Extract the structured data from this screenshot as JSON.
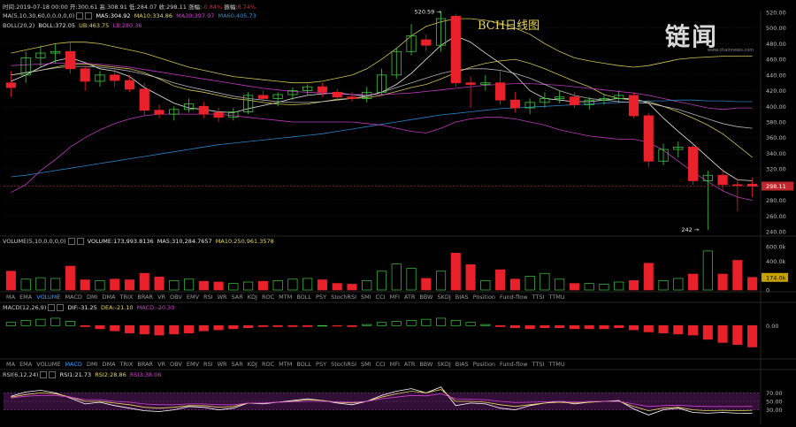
{
  "header": {
    "time_label": "时间:",
    "time": "2019-07-18 00:00",
    "open_label": "开:",
    "open": "300.61",
    "high_label": "高:",
    "high": "308.91",
    "low_label": "低:",
    "low": "284.07",
    "close_label": "收:",
    "close": "298.11",
    "chg_label": "涨幅:",
    "chg": "-0.84%",
    "amp_label": "振幅:",
    "amp": "8.74%"
  },
  "ma_line": {
    "setting": "MA(5,10,30,60,0,0,0,0,0)",
    "ma5": "MA5:304.92",
    "ma10": "MA10:334.86",
    "ma30": "MA30:397.97",
    "ma60": "MA60:405.73"
  },
  "boll_line": {
    "setting": "BOLL(20,2)",
    "boll": "BOLL:372.05",
    "ub": "UB:463.75",
    "lb": "LB:280.36"
  },
  "vol_line": {
    "setting": "VOLUME(5,10,0,0,0,0)",
    "volume": "VOLUME:173,993.8136",
    "ma5": "MA5:310,284.7657",
    "ma10": "MA10:250,961.3578"
  },
  "macd_line": {
    "setting": "MACD(12,26,9)",
    "dif": "DIF:-31.25",
    "dea": "DEA:-21.10",
    "macd": "MACD:-20.30"
  },
  "rsi_line": {
    "setting": "RSI(6,12,24)",
    "rsi1": "RSI1:21.73",
    "rsi2": "RSI2:28.86",
    "rsi3": "RSI3:38.06"
  },
  "indicator_tabs": [
    "MA",
    "EMA",
    "VOLUME",
    "MACD",
    "DMI",
    "DMA",
    "TRIX",
    "BRAR",
    "VR",
    "OBV",
    "EMV",
    "RSI",
    "WR",
    "SAR",
    "KDJ",
    "ROC",
    "MTM",
    "BOLL",
    "PSY",
    "StochRSI",
    "SMI",
    "CCI",
    "MFI",
    "ATR",
    "BBW",
    "SKDJ",
    "BIAS",
    "Position",
    "Fund-flow",
    "TTSI",
    "TTMU"
  ],
  "active_tab_1": "VOLUME",
  "active_tab_2": "MACD",
  "watermark": "链闻",
  "watermark_sub": "www.chainnews.com",
  "colors": {
    "up": "#3ec93e",
    "down": "#e8212a",
    "ma5": "#ffffff",
    "ma10": "#e8d85a",
    "ma30": "#d23fd2",
    "ma60": "#2f8fd8",
    "boll_mid": "#e8d85a",
    "boll_band": "#c8c8c8",
    "bg": "#000000"
  },
  "chart_data": [
    {
      "type": "candlestick",
      "title": "BCH日线图",
      "ylim": [
        240,
        520
      ],
      "yticks": [
        "520.00",
        "500.00",
        "480.00",
        "460.00",
        "440.00",
        "420.00",
        "400.00",
        "380.00",
        "360.00",
        "340.00",
        "320.00",
        "300.00",
        "280.00",
        "260.00",
        "240.00"
      ],
      "annotations": [
        {
          "text": "520.59 →",
          "x_index": 29,
          "value": 520.59
        },
        {
          "text": "242 →",
          "x_index": 47,
          "value": 242
        }
      ],
      "last_price": "298.11",
      "candles": [
        {
          "o": 430,
          "h": 445,
          "l": 412,
          "c": 424
        },
        {
          "o": 440,
          "h": 470,
          "l": 430,
          "c": 462
        },
        {
          "o": 462,
          "h": 478,
          "l": 450,
          "c": 468
        },
        {
          "o": 468,
          "h": 480,
          "l": 455,
          "c": 470
        },
        {
          "o": 470,
          "h": 482,
          "l": 442,
          "c": 448
        },
        {
          "o": 448,
          "h": 452,
          "l": 420,
          "c": 432
        },
        {
          "o": 432,
          "h": 445,
          "l": 425,
          "c": 440
        },
        {
          "o": 440,
          "h": 448,
          "l": 425,
          "c": 433
        },
        {
          "o": 433,
          "h": 440,
          "l": 418,
          "c": 422
        },
        {
          "o": 422,
          "h": 430,
          "l": 388,
          "c": 395
        },
        {
          "o": 395,
          "h": 402,
          "l": 385,
          "c": 390
        },
        {
          "o": 390,
          "h": 400,
          "l": 382,
          "c": 396
        },
        {
          "o": 396,
          "h": 410,
          "l": 392,
          "c": 403
        },
        {
          "o": 400,
          "h": 406,
          "l": 385,
          "c": 390
        },
        {
          "o": 392,
          "h": 398,
          "l": 380,
          "c": 386
        },
        {
          "o": 386,
          "h": 398,
          "l": 382,
          "c": 393
        },
        {
          "o": 393,
          "h": 418,
          "l": 390,
          "c": 414
        },
        {
          "o": 414,
          "h": 420,
          "l": 405,
          "c": 410
        },
        {
          "o": 410,
          "h": 418,
          "l": 400,
          "c": 415
        },
        {
          "o": 415,
          "h": 424,
          "l": 408,
          "c": 420
        },
        {
          "o": 420,
          "h": 428,
          "l": 414,
          "c": 425
        },
        {
          "o": 425,
          "h": 430,
          "l": 412,
          "c": 418
        },
        {
          "o": 418,
          "h": 422,
          "l": 408,
          "c": 412
        },
        {
          "o": 412,
          "h": 418,
          "l": 406,
          "c": 410
        },
        {
          "o": 410,
          "h": 425,
          "l": 405,
          "c": 418
        },
        {
          "o": 418,
          "h": 448,
          "l": 415,
          "c": 440
        },
        {
          "o": 440,
          "h": 475,
          "l": 435,
          "c": 470
        },
        {
          "o": 470,
          "h": 505,
          "l": 465,
          "c": 490
        },
        {
          "o": 485,
          "h": 492,
          "l": 470,
          "c": 478
        },
        {
          "o": 478,
          "h": 521,
          "l": 470,
          "c": 512
        },
        {
          "o": 515,
          "h": 518,
          "l": 425,
          "c": 430
        },
        {
          "o": 430,
          "h": 438,
          "l": 398,
          "c": 428
        },
        {
          "o": 428,
          "h": 440,
          "l": 420,
          "c": 430
        },
        {
          "o": 430,
          "h": 445,
          "l": 402,
          "c": 408
        },
        {
          "o": 408,
          "h": 418,
          "l": 392,
          "c": 398
        },
        {
          "o": 398,
          "h": 410,
          "l": 390,
          "c": 405
        },
        {
          "o": 405,
          "h": 418,
          "l": 398,
          "c": 410
        },
        {
          "o": 410,
          "h": 420,
          "l": 404,
          "c": 412
        },
        {
          "o": 412,
          "h": 418,
          "l": 398,
          "c": 402
        },
        {
          "o": 402,
          "h": 412,
          "l": 396,
          "c": 408
        },
        {
          "o": 408,
          "h": 416,
          "l": 402,
          "c": 410
        },
        {
          "o": 410,
          "h": 420,
          "l": 404,
          "c": 414
        },
        {
          "o": 414,
          "h": 418,
          "l": 385,
          "c": 388
        },
        {
          "o": 388,
          "h": 392,
          "l": 322,
          "c": 330
        },
        {
          "o": 330,
          "h": 352,
          "l": 325,
          "c": 345
        },
        {
          "o": 345,
          "h": 355,
          "l": 335,
          "c": 348
        },
        {
          "o": 348,
          "h": 352,
          "l": 300,
          "c": 305
        },
        {
          "o": 305,
          "h": 318,
          "l": 242,
          "c": 312
        },
        {
          "o": 312,
          "h": 320,
          "l": 292,
          "c": 300
        },
        {
          "o": 300,
          "h": 308,
          "l": 266,
          "c": 299
        },
        {
          "o": 300.61,
          "h": 308.91,
          "l": 284.07,
          "c": 298.11
        }
      ],
      "series": [
        {
          "name": "MA5",
          "values": [
            432,
            440,
            450,
            458,
            462,
            456,
            448,
            445,
            438,
            424,
            414,
            404,
            398,
            396,
            393,
            392,
            397,
            401,
            405,
            410,
            414,
            416,
            417,
            415,
            413,
            418,
            428,
            442,
            460,
            478,
            490,
            482,
            468,
            455,
            440,
            420,
            410,
            408,
            406,
            406,
            408,
            410,
            410,
            404,
            385,
            368,
            352,
            335,
            318,
            306,
            305
          ]
        },
        {
          "name": "MA10",
          "values": [
            440,
            443,
            446,
            450,
            454,
            454,
            452,
            450,
            448,
            443,
            435,
            426,
            421,
            418,
            414,
            410,
            408,
            405,
            403,
            402,
            403,
            406,
            409,
            410,
            411,
            414,
            419,
            424,
            428,
            435,
            443,
            450,
            455,
            458,
            460,
            455,
            448,
            440,
            432,
            425,
            415,
            410,
            408,
            406,
            400,
            393,
            385,
            376,
            365,
            350,
            335
          ]
        },
        {
          "name": "MA30",
          "values": [
            452,
            453,
            454,
            455,
            455,
            455,
            454,
            452,
            450,
            447,
            444,
            441,
            438,
            435,
            432,
            429,
            426,
            423,
            421,
            419,
            418,
            417,
            416,
            415,
            415,
            415,
            416,
            417,
            419,
            421,
            423,
            425,
            427,
            428,
            429,
            429,
            428,
            427,
            425,
            423,
            421,
            419,
            417,
            414,
            410,
            406,
            402,
            398,
            396,
            398,
            398
          ]
        },
        {
          "name": "MA60",
          "values": [
            310,
            312,
            315,
            318,
            321,
            324,
            327,
            330,
            333,
            336,
            339,
            342,
            345,
            348,
            351,
            353,
            355,
            357,
            359,
            361,
            363,
            365,
            368,
            371,
            374,
            377,
            380,
            383,
            386,
            389,
            391,
            393,
            395,
            397,
            398,
            399,
            400,
            401,
            402,
            403,
            404,
            405,
            406,
            407,
            407,
            408,
            408,
            407,
            407,
            406,
            406
          ]
        },
        {
          "name": "BOLL_UB",
          "values": [
            468,
            472,
            476,
            480,
            482,
            482,
            480,
            476,
            472,
            468,
            462,
            456,
            450,
            446,
            442,
            438,
            436,
            434,
            432,
            430,
            430,
            432,
            436,
            440,
            448,
            460,
            474,
            490,
            502,
            508,
            512,
            512,
            510,
            506,
            500,
            492,
            480,
            470,
            462,
            458,
            455,
            452,
            450,
            452,
            456,
            460,
            462,
            463,
            464,
            464,
            464
          ]
        },
        {
          "name": "BOLL_MID",
          "values": [
            440,
            443,
            446,
            449,
            451,
            451,
            450,
            448,
            445,
            441,
            436,
            430,
            425,
            421,
            417,
            413,
            410,
            408,
            406,
            405,
            405,
            406,
            408,
            410,
            413,
            418,
            424,
            430,
            436,
            442,
            446,
            448,
            448,
            446,
            442,
            436,
            428,
            420,
            414,
            410,
            408,
            406,
            405,
            404,
            400,
            396,
            390,
            384,
            378,
            374,
            372
          ]
        },
        {
          "name": "BOLL_LB",
          "values": [
            290,
            300,
            318,
            332,
            348,
            360,
            370,
            378,
            384,
            388,
            390,
            390,
            390,
            390,
            390,
            388,
            386,
            384,
            382,
            380,
            380,
            380,
            380,
            380,
            378,
            376,
            372,
            368,
            366,
            372,
            380,
            384,
            386,
            386,
            384,
            380,
            376,
            370,
            366,
            362,
            360,
            358,
            358,
            354,
            344,
            330,
            316,
            304,
            292,
            284,
            280
          ]
        }
      ]
    },
    {
      "type": "bar",
      "title": "",
      "ylim": [
        0,
        600000
      ],
      "yticks": [
        "600.0k",
        "400.0k",
        "200.0k",
        "0"
      ],
      "current_label": "174.0k",
      "values": [
        260000,
        150000,
        170000,
        160000,
        330000,
        140000,
        130000,
        150000,
        140000,
        230000,
        180000,
        130000,
        150000,
        120000,
        110000,
        90000,
        110000,
        120000,
        130000,
        150000,
        160000,
        140000,
        90000,
        80000,
        130000,
        260000,
        360000,
        300000,
        160000,
        260000,
        510000,
        350000,
        130000,
        280000,
        150000,
        190000,
        230000,
        150000,
        90000,
        90000,
        80000,
        110000,
        130000,
        370000,
        130000,
        160000,
        220000,
        540000,
        220000,
        410000,
        174000
      ]
    },
    {
      "type": "bar",
      "title": "",
      "ylim": [
        -30,
        12
      ],
      "yticks": [
        "0.00"
      ],
      "values": [
        3,
        5,
        6,
        7,
        4,
        -1,
        -3,
        -5,
        -7,
        -8,
        -9,
        -8,
        -7,
        -5,
        -4,
        -3,
        -2,
        -1,
        -1,
        -1,
        -1,
        0,
        -0.5,
        -1,
        1,
        3,
        4,
        5,
        6,
        7,
        5,
        3,
        1,
        -1,
        -2,
        -3,
        -2,
        -2,
        -3,
        -3,
        -3,
        -2,
        -4,
        -6,
        -7,
        -8,
        -9,
        -13,
        -16,
        -18,
        -20.3
      ]
    },
    {
      "type": "line",
      "title": "",
      "ylim": [
        0,
        100
      ],
      "yticks": [
        "70.00",
        "50.00",
        "30.00"
      ],
      "series": [
        {
          "name": "RSI1",
          "values": [
            62,
            72,
            76,
            70,
            58,
            44,
            48,
            40,
            34,
            28,
            26,
            30,
            38,
            36,
            30,
            34,
            46,
            44,
            48,
            52,
            56,
            52,
            46,
            42,
            50,
            64,
            74,
            80,
            70,
            84,
            40,
            46,
            44,
            34,
            30,
            40,
            46,
            50,
            44,
            48,
            50,
            52,
            32,
            18,
            30,
            34,
            24,
            22,
            24,
            22,
            21.73
          ]
        },
        {
          "name": "RSI2",
          "values": [
            60,
            66,
            70,
            68,
            60,
            50,
            50,
            46,
            42,
            36,
            34,
            36,
            40,
            40,
            36,
            38,
            46,
            46,
            48,
            50,
            54,
            52,
            48,
            46,
            50,
            60,
            68,
            74,
            70,
            78,
            50,
            50,
            48,
            42,
            38,
            42,
            46,
            48,
            46,
            48,
            50,
            50,
            38,
            28,
            34,
            36,
            30,
            28,
            29,
            28,
            28.86
          ]
        },
        {
          "name": "RSI3",
          "values": [
            58,
            62,
            64,
            64,
            60,
            54,
            54,
            50,
            48,
            44,
            42,
            42,
            44,
            44,
            42,
            42,
            46,
            46,
            48,
            49,
            50,
            50,
            49,
            48,
            50,
            56,
            60,
            64,
            63,
            68,
            56,
            55,
            54,
            50,
            47,
            48,
            49,
            50,
            49,
            50,
            50,
            50,
            44,
            38,
            40,
            41,
            39,
            38,
            38,
            38,
            38.06
          ]
        }
      ]
    }
  ]
}
